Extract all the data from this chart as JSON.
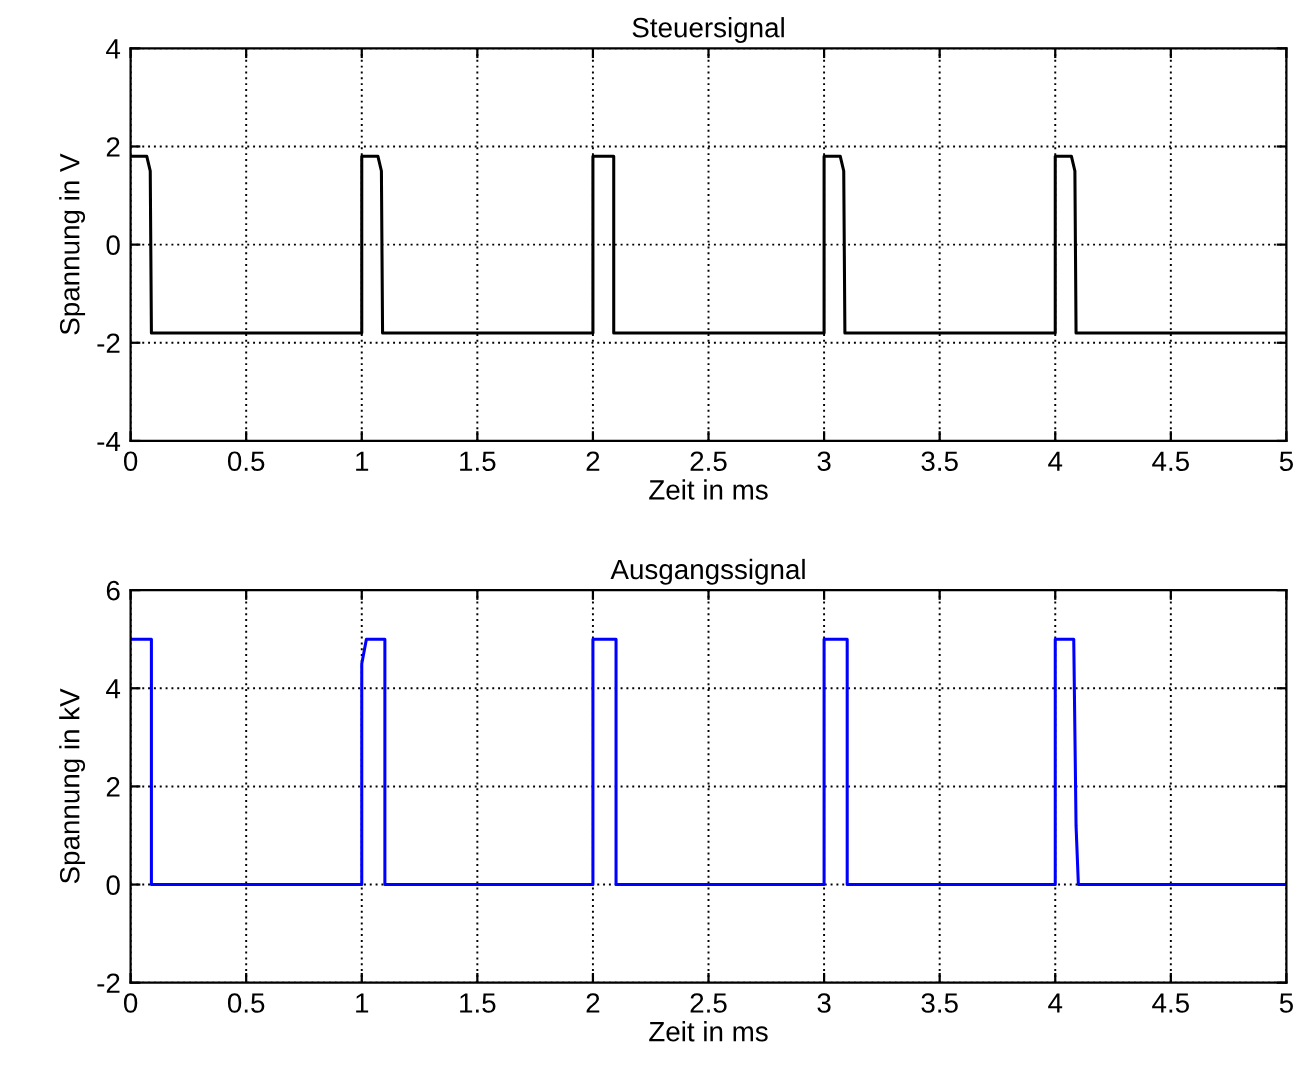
{
  "chart_data": [
    {
      "type": "line",
      "title": "Steuersignal",
      "xlabel": "Zeit in ms",
      "ylabel": "Spannung in V",
      "xlim": [
        0,
        5
      ],
      "xticks": [
        0,
        0.5,
        1,
        1.5,
        2,
        2.5,
        3,
        3.5,
        4,
        4.5,
        5
      ],
      "ylim": [
        -4,
        4
      ],
      "yticks": [
        -4,
        -2,
        0,
        2,
        4
      ],
      "grid": true,
      "series": [
        {
          "color": "#000000",
          "x": [
            0,
            0.07,
            0.085,
            0.09,
            1.0,
            1.0,
            1.07,
            1.085,
            1.09,
            2.0,
            2.0,
            2.09,
            2.09,
            3.0,
            3.0,
            3.07,
            3.085,
            3.09,
            4.0,
            4.0,
            4.07,
            4.085,
            4.09,
            5.0
          ],
          "values": [
            1.8,
            1.8,
            1.5,
            -1.8,
            -1.8,
            1.8,
            1.8,
            1.5,
            -1.8,
            -1.8,
            1.8,
            1.8,
            -1.8,
            -1.8,
            1.8,
            1.8,
            1.5,
            -1.8,
            -1.8,
            1.8,
            1.8,
            1.5,
            -1.8,
            -1.8
          ]
        }
      ]
    },
    {
      "type": "line",
      "title": "Ausgangssignal",
      "xlabel": "Zeit in ms",
      "ylabel": "Spannung in kV",
      "xlim": [
        0,
        5
      ],
      "xticks": [
        0,
        0.5,
        1,
        1.5,
        2,
        2.5,
        3,
        3.5,
        4,
        4.5,
        5
      ],
      "ylim": [
        -2,
        6
      ],
      "yticks": [
        -2,
        0,
        2,
        4,
        6
      ],
      "grid": true,
      "series": [
        {
          "color": "#0000ff",
          "x": [
            0,
            0.09,
            0.09,
            1.0,
            1.0,
            1.02,
            1.1,
            1.1,
            2.0,
            2.0,
            2.1,
            2.1,
            3.0,
            3.0,
            3.1,
            3.1,
            4.0,
            4.0,
            4.08,
            4.09,
            4.1,
            5.0
          ],
          "values": [
            5,
            5,
            0,
            0,
            4.5,
            5,
            5,
            0,
            0,
            5,
            5,
            0,
            0,
            5,
            5,
            0,
            0,
            5,
            5,
            1.2,
            0,
            0
          ]
        }
      ]
    }
  ]
}
